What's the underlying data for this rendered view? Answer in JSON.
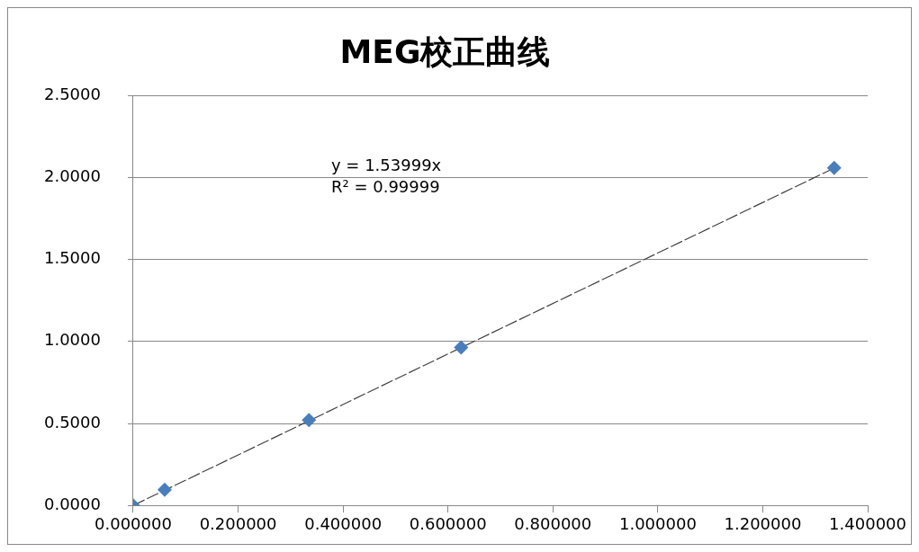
{
  "chart_data": {
    "type": "scatter",
    "title": "MEG校正曲线",
    "marker": "diamond",
    "grid": "y",
    "legend": false,
    "xlim": [
      0,
      1.4
    ],
    "xticks": [
      {
        "value": 0,
        "label": "0.000000"
      },
      {
        "value": 0.2,
        "label": "0.200000"
      },
      {
        "value": 0.4,
        "label": "0.400000"
      },
      {
        "value": 0.6,
        "label": "0.600000"
      },
      {
        "value": 0.8,
        "label": "0.800000"
      },
      {
        "value": 1.0,
        "label": "1.000000"
      },
      {
        "value": 1.2,
        "label": "1.200000"
      },
      {
        "value": 1.4,
        "label": "1.400000"
      }
    ],
    "ylim": [
      0,
      2.5
    ],
    "yticks": [
      {
        "value": 0,
        "label": "0.0000"
      },
      {
        "value": 0.5,
        "label": "0.5000"
      },
      {
        "value": 1.0,
        "label": "1.0000"
      },
      {
        "value": 1.5,
        "label": "1.5000"
      },
      {
        "value": 2.0,
        "label": "2.0000"
      },
      {
        "value": 2.5,
        "label": "2.5000"
      }
    ],
    "series": [
      {
        "type": "scatter",
        "color": "#4a7ebb",
        "x": [
          0,
          0.06,
          0.335,
          0.625,
          1.336
        ],
        "values": [
          0,
          0.095,
          0.52,
          0.963,
          2.058
        ]
      },
      {
        "type": "line",
        "color": "#404040",
        "line_style": "dashed",
        "marker": "none",
        "x": [
          0,
          1.336
        ],
        "values": [
          0,
          2.057
        ]
      }
    ],
    "annotations": [
      "y = 1.53999x",
      "R² = 0.99999"
    ]
  }
}
